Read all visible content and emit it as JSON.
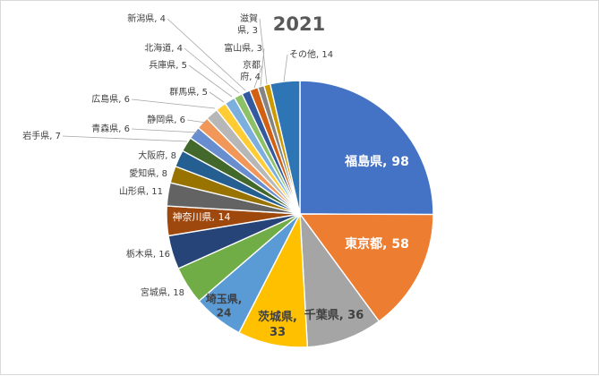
{
  "chart_data": {
    "type": "pie",
    "title": "2021",
    "start_angle_deg": 0,
    "direction": "clockwise",
    "slices": [
      {
        "label": "福島県",
        "value": 98,
        "color": "#4472c4"
      },
      {
        "label": "東京都",
        "value": 58,
        "color": "#ed7d31"
      },
      {
        "label": "千葉県",
        "value": 36,
        "color": "#a5a5a5"
      },
      {
        "label": "茨城県",
        "value": 33,
        "color": "#ffc000"
      },
      {
        "label": "埼玉県",
        "value": 24,
        "color": "#5b9bd5"
      },
      {
        "label": "宮城県",
        "value": 18,
        "color": "#70ad47"
      },
      {
        "label": "栃木県",
        "value": 16,
        "color": "#264478"
      },
      {
        "label": "神奈川県",
        "value": 14,
        "color": "#9e480e"
      },
      {
        "label": "山形県",
        "value": 11,
        "color": "#636363"
      },
      {
        "label": "愛知県",
        "value": 8,
        "color": "#997300"
      },
      {
        "label": "大阪府",
        "value": 8,
        "color": "#255e91"
      },
      {
        "label": "岩手県",
        "value": 7,
        "color": "#43682b"
      },
      {
        "label": "青森県",
        "value": 6,
        "color": "#698ed0"
      },
      {
        "label": "静岡県",
        "value": 6,
        "color": "#f1975a"
      },
      {
        "label": "広島県",
        "value": 6,
        "color": "#b7b7b7"
      },
      {
        "label": "群馬県",
        "value": 5,
        "color": "#ffcd33"
      },
      {
        "label": "兵庫県",
        "value": 5,
        "color": "#7cafdd"
      },
      {
        "label": "北海道",
        "value": 4,
        "color": "#8cc168"
      },
      {
        "label": "新潟県",
        "value": 4,
        "color": "#335aa1"
      },
      {
        "label": "京都府",
        "value": 4,
        "color": "#d26012"
      },
      {
        "label": "富山県",
        "value": 3,
        "color": "#848484"
      },
      {
        "label": "滋賀県",
        "value": 3,
        "color": "#cc9a00"
      },
      {
        "label": "その他",
        "value": 14,
        "color": "#2e75b6"
      }
    ],
    "data_labels": [
      {
        "text": "福島県, 98"
      },
      {
        "text": "東京都, 58"
      },
      {
        "text": "千葉県, 36"
      },
      {
        "text": "茨城県, 33"
      },
      {
        "text": "埼玉県, 24"
      },
      {
        "text": "宮城県, 18"
      },
      {
        "text": "栃木県, 16"
      },
      {
        "text": "神奈川県, 14"
      },
      {
        "text": "山形県, 11"
      },
      {
        "text": "愛知県, 8"
      },
      {
        "text": "大阪府, 8"
      },
      {
        "text": "岩手県, 7"
      },
      {
        "text": "青森県, 6"
      },
      {
        "text": "静岡県, 6"
      },
      {
        "text": "広島県, 6"
      },
      {
        "text": "群馬県, 5"
      },
      {
        "text": "兵庫県, 5"
      },
      {
        "text": "北海道, 4"
      },
      {
        "text": "新潟県, 4"
      },
      {
        "text": "京都府, 4"
      },
      {
        "text": "富山県, 3"
      },
      {
        "text": "滋賀県, 3"
      },
      {
        "text": "その他, 14"
      }
    ]
  }
}
